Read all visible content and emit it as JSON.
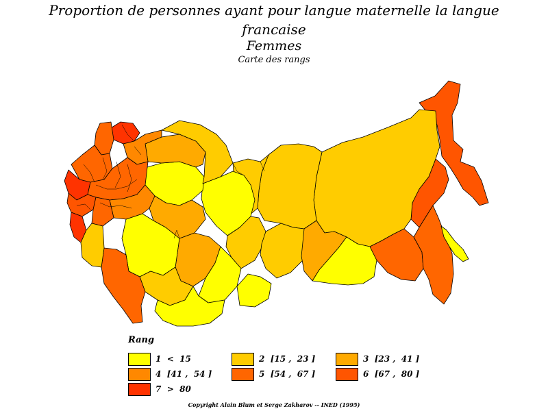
{
  "title": {
    "line1": "Proportion de personnes ayant pour langue maternelle la langue",
    "line2": "francaise",
    "line3": "Femmes",
    "subtitle": "Carte des rangs"
  },
  "legend": {
    "title": "Rang",
    "items": [
      {
        "label": "1  <  15",
        "color": "#ffff00"
      },
      {
        "label": "2  [15 ,  23 ]",
        "color": "#ffcc00"
      },
      {
        "label": "3  [23 ,  41 ]",
        "color": "#ffaa00"
      },
      {
        "label": "4  [41 ,  54 ]",
        "color": "#ff8800"
      },
      {
        "label": "5  [54 ,  67 ]",
        "color": "#ff6600"
      },
      {
        "label": "6  [67 ,  80 ]",
        "color": "#ff5500"
      },
      {
        "label": "7  >  80",
        "color": "#ff3300"
      }
    ]
  },
  "copyright": "Copyright  Alain  Blum  et  Serge  Zakharov  --  INED  (1995)"
}
